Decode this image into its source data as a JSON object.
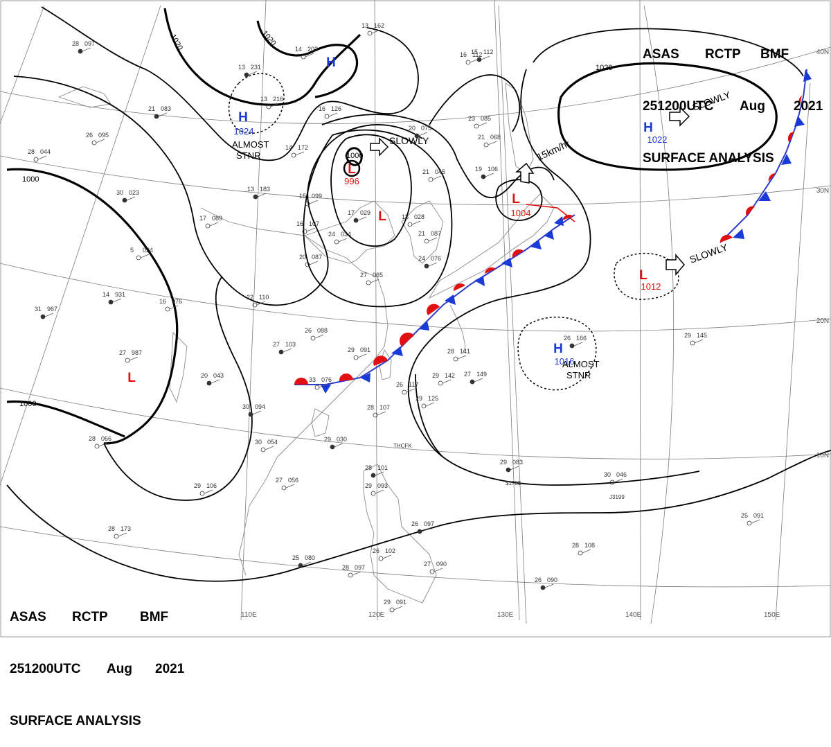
{
  "header": {
    "agency": "ASAS",
    "station": "RCTP",
    "office": "BMF",
    "time": "251200UTC",
    "month": "Aug",
    "year": "2021",
    "product": "SURFACE ANALYSIS"
  },
  "latitude_labels": [
    "40N",
    "30N",
    "20N",
    "10N"
  ],
  "longitude_labels": [
    "110E",
    "120E",
    "130E",
    "140E",
    "150E"
  ],
  "isobar_labels": [
    "1020",
    "1020",
    "1020",
    "1000",
    "1000",
    "1000"
  ],
  "pressure_centers": [
    {
      "type": "H",
      "value": "1024",
      "note": "ALMOST STNR",
      "color": "#1a3ad8"
    },
    {
      "type": "H",
      "value": "",
      "note": "",
      "color": "#1a3ad8"
    },
    {
      "type": "L",
      "value": "996",
      "note": "",
      "color": "#e01010"
    },
    {
      "type": "L",
      "value": "",
      "note": "",
      "color": "#e01010"
    },
    {
      "type": "L",
      "value": "1004",
      "note": "",
      "color": "#e01010"
    },
    {
      "type": "H",
      "value": "1022",
      "note": "",
      "color": "#1a3ad8"
    },
    {
      "type": "L",
      "value": "1012",
      "note": "",
      "color": "#e01010"
    },
    {
      "type": "H",
      "value": "1016",
      "note": "ALMOST STNR",
      "color": "#1a3ad8"
    },
    {
      "type": "L",
      "value": "",
      "note": "",
      "color": "#e01010"
    }
  ],
  "motion_labels": [
    "SLOWLY",
    "SLOWLY",
    "SLOWLY",
    "15km/hr"
  ],
  "inner_label": "1000",
  "station_codes": [
    "THCFK",
    "$178$",
    "J3199"
  ],
  "station_plots": [
    {
      "t": "28",
      "p": "097"
    },
    {
      "t": "26",
      "p": "095"
    },
    {
      "t": "28",
      "p": "044"
    },
    {
      "t": "21",
      "p": "083"
    },
    {
      "t": "13",
      "p": "162"
    },
    {
      "t": "14",
      "p": "203"
    },
    {
      "t": "13",
      "p": "231"
    },
    {
      "t": "13",
      "p": "216"
    },
    {
      "t": "16",
      "p": "126"
    },
    {
      "t": "15",
      "p": "112"
    },
    {
      "t": "16",
      "p": "112"
    },
    {
      "t": "23",
      "p": "085"
    },
    {
      "t": "20",
      "p": "075"
    },
    {
      "t": "21",
      "p": "068"
    },
    {
      "t": "14",
      "p": "172"
    },
    {
      "t": "13",
      "p": "183"
    },
    {
      "t": "15",
      "p": "099"
    },
    {
      "t": "16",
      "p": "107"
    },
    {
      "t": "30",
      "p": "023"
    },
    {
      "t": "17",
      "p": "089"
    },
    {
      "t": "24",
      "p": "034"
    },
    {
      "t": "17",
      "p": "029"
    },
    {
      "t": "18",
      "p": "028"
    },
    {
      "t": "21",
      "p": "045"
    },
    {
      "t": "19",
      "p": "106"
    },
    {
      "t": "21",
      "p": "087"
    },
    {
      "t": "20",
      "p": "087"
    },
    {
      "t": "24",
      "p": "076"
    },
    {
      "t": "27",
      "p": "065"
    },
    {
      "t": "5",
      "p": "024"
    },
    {
      "t": "14",
      "p": "931"
    },
    {
      "t": "16",
      "p": "976"
    },
    {
      "t": "22",
      "p": "110"
    },
    {
      "t": "31",
      "p": "967"
    },
    {
      "t": "26",
      "p": "088"
    },
    {
      "t": "29",
      "p": "091"
    },
    {
      "t": "27",
      "p": "103"
    },
    {
      "t": "27",
      "p": "987"
    },
    {
      "t": "33",
      "p": "076"
    },
    {
      "t": "20",
      "p": "043"
    },
    {
      "t": "28",
      "p": "141"
    },
    {
      "t": "29",
      "p": "142"
    },
    {
      "t": "27",
      "p": "149"
    },
    {
      "t": "26",
      "p": "117"
    },
    {
      "t": "29",
      "p": "125"
    },
    {
      "t": "26",
      "p": "166"
    },
    {
      "t": "29",
      "p": "145"
    },
    {
      "t": "28",
      "p": "107"
    },
    {
      "t": "30",
      "p": "094"
    },
    {
      "t": "30",
      "p": "054"
    },
    {
      "t": "28",
      "p": "066"
    },
    {
      "t": "29",
      "p": "030"
    },
    {
      "t": "29",
      "p": "106"
    },
    {
      "t": "27",
      "p": "056"
    },
    {
      "t": "29",
      "p": "083"
    },
    {
      "t": "30",
      "p": "046"
    },
    {
      "t": "28",
      "p": "173"
    },
    {
      "t": "25",
      "p": "080"
    },
    {
      "t": "28",
      "p": "097"
    },
    {
      "t": "26",
      "p": "102"
    },
    {
      "t": "26",
      "p": "097"
    },
    {
      "t": "27",
      "p": "090"
    },
    {
      "t": "29",
      "p": "091"
    },
    {
      "t": "26",
      "p": "090"
    },
    {
      "t": "25",
      "p": "091"
    },
    {
      "t": "28",
      "p": "108"
    },
    {
      "t": "28",
      "p": "101"
    },
    {
      "t": "29",
      "p": "093"
    },
    {
      "t": "16",
      "p": "093"
    }
  ]
}
